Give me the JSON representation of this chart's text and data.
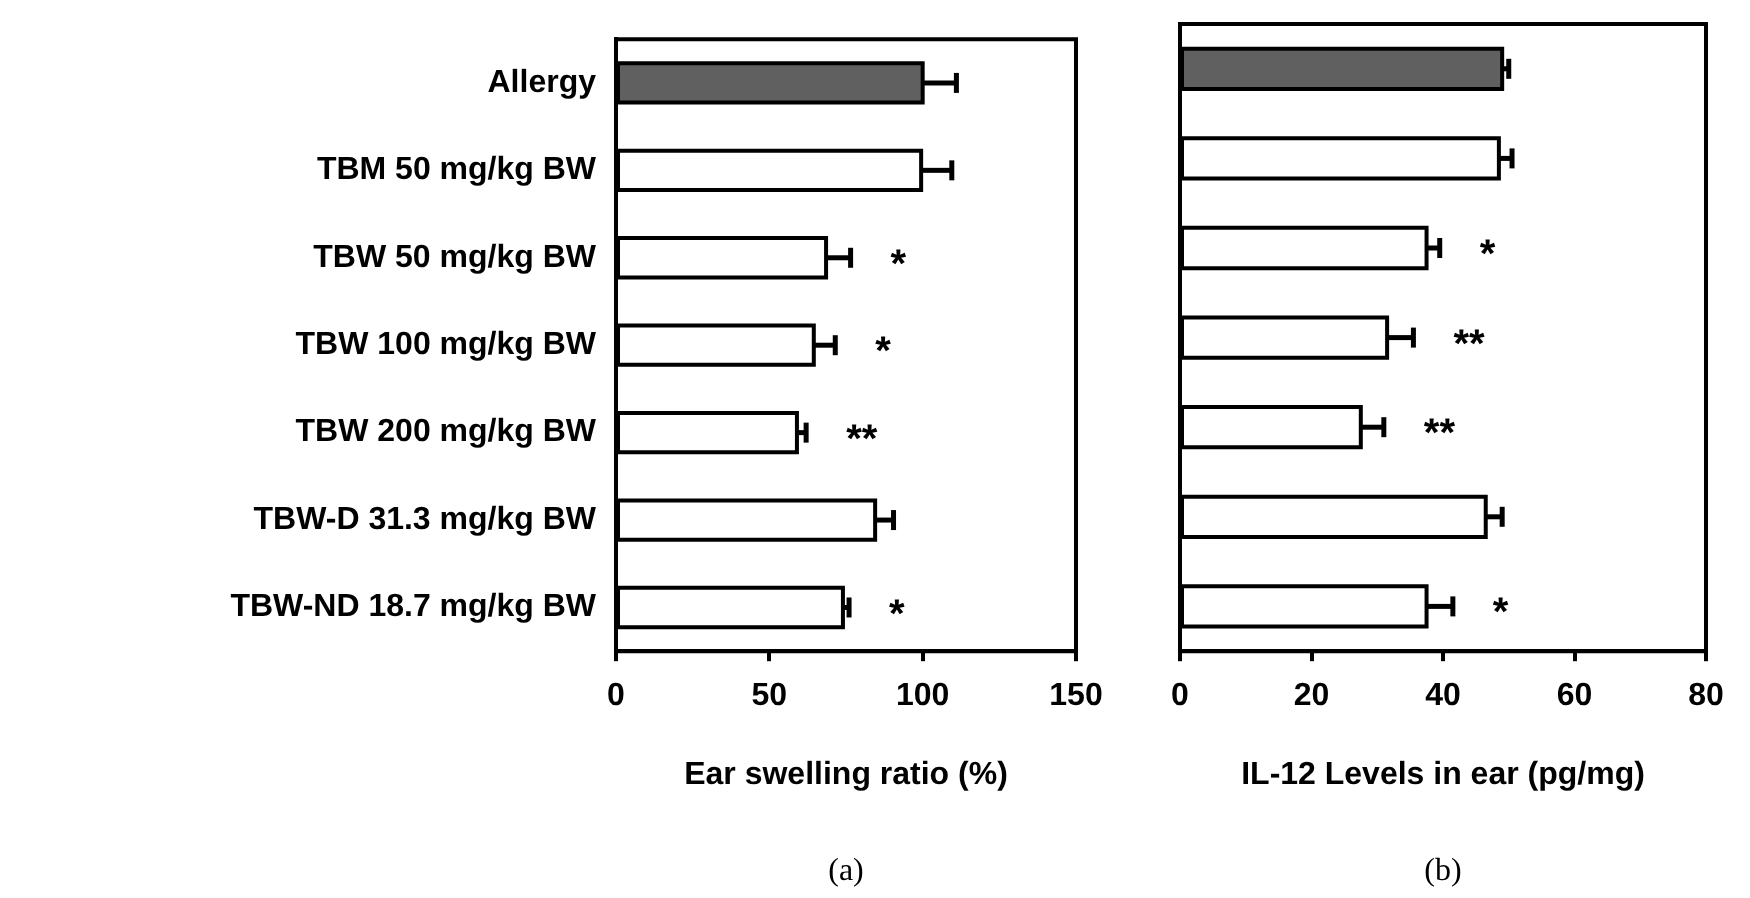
{
  "chart_data": [
    {
      "type": "bar",
      "orientation": "horizontal",
      "categories": [
        "Allergy",
        "TBM 50 mg/kg BW",
        "TBW 50 mg/kg BW",
        "TBW 100 mg/kg BW",
        "TBW 200 mg/kg BW",
        "TBW-D 31.3 mg/kg BW",
        "TBW-ND 18.7 mg/kg BW"
      ],
      "values": [
        100,
        99.5,
        68.5,
        64.5,
        59,
        84.5,
        74
      ],
      "errors": [
        11,
        10,
        8,
        7,
        3,
        6,
        2
      ],
      "colors": [
        "#606060",
        "#ffffff",
        "#ffffff",
        "#ffffff",
        "#ffffff",
        "#ffffff",
        "#ffffff"
      ],
      "xlim": [
        0,
        150
      ],
      "xticks": [
        0,
        50,
        100,
        150
      ],
      "xlabel": "Ear swelling ratio (%)",
      "grid": false,
      "annotations": [
        "*",
        "*",
        "**",
        "*",
        "(a)"
      ]
    },
    {
      "type": "bar",
      "orientation": "horizontal",
      "categories": [
        null,
        null,
        null,
        null,
        null,
        null,
        null
      ],
      "values": [
        49,
        48.5,
        37.5,
        31.5,
        27.5,
        46.5,
        37.5
      ],
      "errors": [
        1,
        2,
        2,
        4,
        3.5,
        2.5,
        4
      ],
      "colors": [
        "#606060",
        "#ffffff",
        "#ffffff",
        "#ffffff",
        "#ffffff",
        "#ffffff",
        "#ffffff"
      ],
      "xlim": [
        0,
        80
      ],
      "xticks": [
        0,
        20,
        40,
        60,
        80
      ],
      "xlabel": "IL-12 Levels in ear (pg/mg)",
      "grid": false,
      "tick_labels": "x",
      "annotations": [
        "*",
        "**",
        "**",
        "*",
        "(b)"
      ]
    }
  ]
}
